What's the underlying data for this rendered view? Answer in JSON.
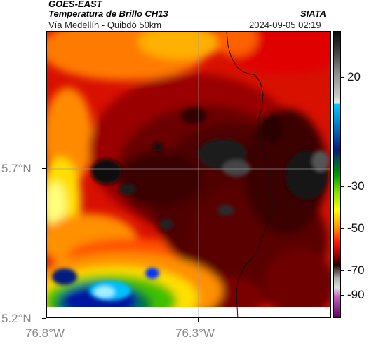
{
  "header": {
    "satellite": "GOES-EAST",
    "product": "Temperatura de Brillo CH13",
    "region": "Vía Medellín - Quibdó 50km",
    "org": "SIATA",
    "datetime": "2024-09-05 02:19"
  },
  "axes": {
    "lat_ticks": [
      "5.7°N",
      "5.2°N"
    ],
    "lon_ticks": [
      "76.8°W",
      "76.3°W"
    ]
  },
  "colorbar": {
    "ticks": [
      "20",
      "-30",
      "-50",
      "-70",
      "-90"
    ],
    "min": -95,
    "max": 30,
    "stops": [
      {
        "v": 30,
        "c": "#0a0a0a"
      },
      {
        "v": 22,
        "c": "#3a3a3a"
      },
      {
        "v": 12,
        "c": "#8a8a8a"
      },
      {
        "v": 2,
        "c": "#c8c8c8"
      },
      {
        "v": -1,
        "c": "#e8e8e8"
      },
      {
        "v": -2,
        "c": "#00c8ff"
      },
      {
        "v": -22,
        "c": "#0a1a7a"
      },
      {
        "v": -33,
        "c": "#00a000"
      },
      {
        "v": -40,
        "c": "#80e000"
      },
      {
        "v": -48,
        "c": "#ffff00"
      },
      {
        "v": -56,
        "c": "#ff9000"
      },
      {
        "v": -62,
        "c": "#ff1a00"
      },
      {
        "v": -67,
        "c": "#b00000"
      },
      {
        "v": -72,
        "c": "#200000"
      },
      {
        "v": -78,
        "c": "#b0b0b0"
      },
      {
        "v": -82,
        "c": "#e0e0e0"
      },
      {
        "v": -86,
        "c": "#c060c0"
      },
      {
        "v": -95,
        "c": "#600060"
      }
    ]
  },
  "colors": {
    "deep": "#4a0000",
    "dark": "#6e0000",
    "red": "#b40000",
    "bright": "#e81000",
    "orange": "#ff7000",
    "yellow": "#ffe000",
    "green": "#40c000",
    "blue": "#0018a0",
    "cyan": "#00c0ff",
    "black": "#0c0c0c"
  }
}
